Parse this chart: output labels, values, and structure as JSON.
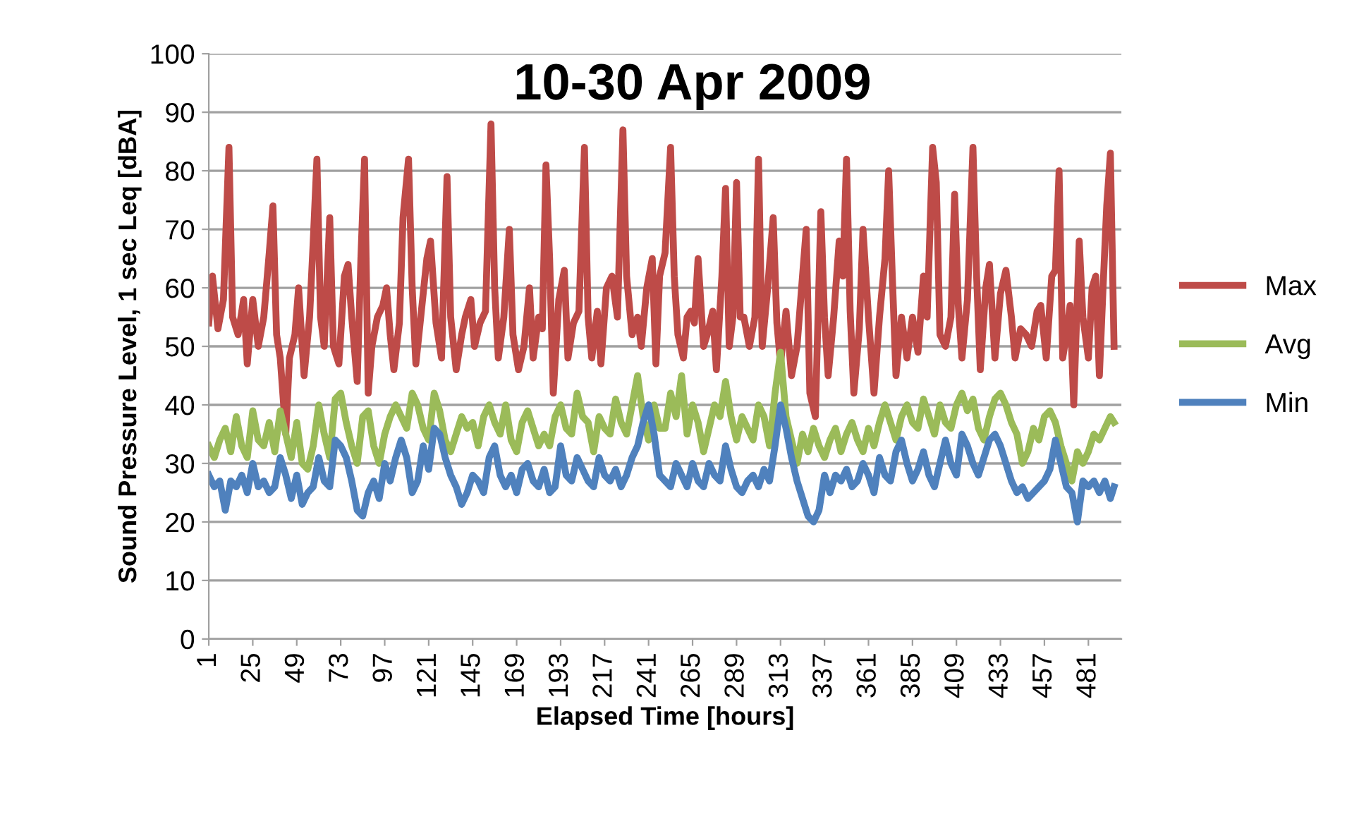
{
  "chart_data": {
    "type": "line",
    "title": "10-30 Apr 2009",
    "xlabel": "Elapsed Time [hours]",
    "ylabel": "Sound Pressure Level, 1 sec Leq [dBA]",
    "xlim": [
      1,
      499
    ],
    "xticks": [
      1,
      25,
      49,
      73,
      97,
      121,
      145,
      169,
      193,
      217,
      241,
      265,
      289,
      313,
      337,
      361,
      385,
      409,
      433,
      457,
      481
    ],
    "ylim": [
      0,
      100
    ],
    "yticks": [
      0,
      10,
      20,
      30,
      40,
      50,
      60,
      70,
      80,
      90,
      100
    ],
    "grid": "y",
    "legend": "right",
    "line_style": "solid",
    "marker": "none",
    "series": [
      {
        "name": "Max",
        "color": "#be4b48",
        "x": [
          1,
          3,
          6,
          9,
          12,
          14,
          17,
          20,
          22,
          25,
          28,
          31,
          34,
          36,
          38,
          40,
          43,
          45,
          48,
          50,
          53,
          56,
          58,
          60,
          62,
          64,
          67,
          69,
          72,
          75,
          77,
          79,
          82,
          84,
          86,
          88,
          90,
          93,
          96,
          98,
          100,
          102,
          105,
          107,
          110,
          112,
          114,
          117,
          120,
          122,
          125,
          128,
          131,
          133,
          136,
          139,
          141,
          144,
          146,
          149,
          152,
          155,
          157,
          159,
          162,
          165,
          167,
          170,
          173,
          176,
          178,
          181,
          183,
          185,
          187,
          189,
          192,
          195,
          197,
          200,
          203,
          206,
          208,
          210,
          213,
          215,
          218,
          221,
          224,
          227,
          229,
          232,
          235,
          237,
          240,
          243,
          245,
          247,
          250,
          253,
          255,
          257,
          260,
          262,
          264,
          266,
          268,
          271,
          273,
          276,
          278,
          281,
          283,
          285,
          287,
          289,
          291,
          293,
          296,
          299,
          301,
          303,
          306,
          309,
          311,
          313,
          316,
          319,
          322,
          325,
          327,
          329,
          332,
          335,
          337,
          339,
          342,
          345,
          347,
          349,
          351,
          353,
          356,
          358,
          361,
          364,
          367,
          370,
          372,
          374,
          376,
          379,
          382,
          385,
          388,
          391,
          393,
          396,
          398,
          400,
          403,
          406,
          408,
          410,
          412,
          415,
          418,
          420,
          422,
          425,
          427,
          430,
          433,
          436,
          439,
          441,
          444,
          447,
          450,
          453,
          455,
          458,
          461,
          463,
          465,
          467,
          469,
          471,
          473,
          476,
          478,
          481,
          483,
          485,
          487,
          489,
          491,
          493,
          495
        ],
        "values": [
          54,
          62,
          53,
          58,
          84,
          55,
          52,
          58,
          47,
          58,
          50,
          55,
          66,
          74,
          52,
          48,
          35,
          48,
          52,
          60,
          45,
          55,
          68,
          82,
          55,
          50,
          72,
          50,
          47,
          62,
          64,
          55,
          44,
          65,
          82,
          42,
          50,
          55,
          57,
          60,
          52,
          46,
          54,
          72,
          82,
          60,
          47,
          56,
          65,
          68,
          54,
          48,
          79,
          55,
          46,
          52,
          55,
          58,
          50,
          54,
          56,
          88,
          60,
          48,
          55,
          70,
          52,
          46,
          50,
          60,
          48,
          55,
          53,
          81,
          65,
          42,
          58,
          63,
          48,
          54,
          56,
          84,
          55,
          48,
          56,
          47,
          60,
          62,
          55,
          87,
          62,
          52,
          55,
          50,
          60,
          65,
          47,
          62,
          66,
          84,
          62,
          52,
          48,
          55,
          56,
          54,
          65,
          50,
          52,
          56,
          46,
          62,
          77,
          50,
          55,
          78,
          55,
          55,
          50,
          55,
          82,
          50,
          60,
          72,
          54,
          47,
          56,
          45,
          50,
          62,
          70,
          42,
          38,
          73,
          55,
          45,
          55,
          68,
          62,
          82,
          56,
          42,
          53,
          70,
          55,
          42,
          55,
          65,
          80,
          62,
          45,
          55,
          48,
          55,
          49,
          62,
          55,
          84,
          78,
          52,
          50,
          55,
          76,
          57,
          48,
          58,
          84,
          62,
          46,
          60,
          64,
          48,
          59,
          63,
          55,
          48,
          53,
          52,
          50,
          56,
          57,
          48,
          62,
          63,
          80,
          48,
          52,
          57,
          40,
          68,
          55,
          48,
          60,
          62,
          45,
          60,
          74,
          83,
          50
        ]
      },
      {
        "name": "Avg",
        "color": "#9bbb59",
        "x": [
          1,
          4,
          7,
          10,
          13,
          16,
          19,
          22,
          25,
          28,
          31,
          34,
          37,
          40,
          43,
          46,
          49,
          52,
          55,
          58,
          61,
          64,
          67,
          70,
          73,
          76,
          79,
          82,
          85,
          88,
          91,
          94,
          97,
          100,
          103,
          106,
          109,
          112,
          115,
          118,
          121,
          124,
          127,
          130,
          133,
          136,
          139,
          142,
          145,
          148,
          151,
          154,
          157,
          160,
          163,
          166,
          169,
          172,
          175,
          178,
          181,
          184,
          187,
          190,
          193,
          196,
          199,
          202,
          205,
          208,
          211,
          214,
          217,
          220,
          223,
          226,
          229,
          232,
          235,
          238,
          241,
          244,
          247,
          250,
          253,
          256,
          259,
          262,
          265,
          268,
          271,
          274,
          277,
          280,
          283,
          286,
          289,
          292,
          295,
          298,
          301,
          304,
          307,
          310,
          313,
          316,
          319,
          322,
          325,
          328,
          331,
          334,
          337,
          340,
          343,
          346,
          349,
          352,
          355,
          358,
          361,
          364,
          367,
          370,
          373,
          376,
          379,
          382,
          385,
          388,
          391,
          394,
          397,
          400,
          403,
          406,
          409,
          412,
          415,
          418,
          421,
          424,
          427,
          430,
          433,
          436,
          439,
          442,
          445,
          448,
          451,
          454,
          457,
          460,
          463,
          466,
          469,
          472,
          475,
          478,
          481,
          484,
          487,
          490,
          493,
          495
        ],
        "values": [
          33,
          31,
          34,
          36,
          32,
          38,
          33,
          31,
          39,
          34,
          33,
          37,
          32,
          39,
          35,
          31,
          37,
          30,
          29,
          33,
          40,
          35,
          31,
          41,
          42,
          37,
          33,
          30,
          38,
          39,
          33,
          30,
          35,
          38,
          40,
          38,
          36,
          42,
          40,
          36,
          34,
          42,
          39,
          34,
          32,
          35,
          38,
          36,
          37,
          33,
          38,
          40,
          37,
          35,
          40,
          34,
          32,
          37,
          39,
          36,
          33,
          35,
          33,
          38,
          40,
          36,
          35,
          42,
          38,
          37,
          32,
          38,
          36,
          35,
          41,
          37,
          35,
          40,
          45,
          38,
          34,
          40,
          36,
          36,
          42,
          38,
          45,
          35,
          40,
          37,
          32,
          36,
          40,
          38,
          44,
          38,
          34,
          38,
          36,
          34,
          40,
          38,
          33,
          42,
          49,
          38,
          34,
          30,
          35,
          32,
          36,
          33,
          31,
          34,
          36,
          32,
          35,
          37,
          34,
          32,
          36,
          33,
          37,
          40,
          37,
          34,
          38,
          40,
          37,
          36,
          41,
          38,
          35,
          40,
          37,
          36,
          40,
          42,
          39,
          41,
          36,
          34,
          38,
          41,
          42,
          40,
          37,
          35,
          30,
          32,
          36,
          34,
          38,
          39,
          37,
          33,
          30,
          27,
          32,
          30,
          32,
          35,
          34,
          36,
          38,
          37
        ]
      },
      {
        "name": "Min",
        "color": "#4f81bd",
        "x": [
          1,
          4,
          7,
          10,
          13,
          16,
          19,
          22,
          25,
          28,
          31,
          34,
          37,
          40,
          43,
          46,
          49,
          52,
          55,
          58,
          61,
          64,
          67,
          70,
          73,
          76,
          79,
          82,
          85,
          88,
          91,
          94,
          97,
          100,
          103,
          106,
          109,
          112,
          115,
          118,
          121,
          124,
          127,
          130,
          133,
          136,
          139,
          142,
          145,
          148,
          151,
          154,
          157,
          160,
          163,
          166,
          169,
          172,
          175,
          178,
          181,
          184,
          187,
          190,
          193,
          196,
          199,
          202,
          205,
          208,
          211,
          214,
          217,
          220,
          223,
          226,
          229,
          232,
          235,
          238,
          241,
          244,
          247,
          250,
          253,
          256,
          259,
          262,
          265,
          268,
          271,
          274,
          277,
          280,
          283,
          286,
          289,
          292,
          295,
          298,
          301,
          304,
          307,
          310,
          313,
          316,
          319,
          322,
          325,
          328,
          331,
          334,
          337,
          340,
          343,
          346,
          349,
          352,
          355,
          358,
          361,
          364,
          367,
          370,
          373,
          376,
          379,
          382,
          385,
          388,
          391,
          394,
          397,
          400,
          403,
          406,
          409,
          412,
          415,
          418,
          421,
          424,
          427,
          430,
          433,
          436,
          439,
          442,
          445,
          448,
          451,
          454,
          457,
          460,
          463,
          466,
          469,
          472,
          475,
          478,
          481,
          484,
          487,
          490,
          493,
          495
        ],
        "values": [
          28,
          26,
          27,
          22,
          27,
          26,
          28,
          25,
          30,
          26,
          27,
          25,
          26,
          31,
          28,
          24,
          28,
          23,
          25,
          26,
          31,
          27,
          26,
          34,
          33,
          31,
          27,
          22,
          21,
          25,
          27,
          24,
          30,
          27,
          31,
          34,
          31,
          25,
          27,
          33,
          29,
          36,
          35,
          31,
          28,
          26,
          23,
          25,
          28,
          27,
          25,
          31,
          33,
          28,
          26,
          28,
          25,
          29,
          30,
          27,
          26,
          29,
          25,
          26,
          33,
          28,
          27,
          31,
          29,
          27,
          26,
          31,
          28,
          27,
          29,
          26,
          28,
          31,
          33,
          37,
          40,
          35,
          28,
          27,
          26,
          30,
          28,
          26,
          30,
          27,
          26,
          30,
          28,
          27,
          33,
          29,
          26,
          25,
          27,
          28,
          26,
          29,
          27,
          33,
          40,
          36,
          31,
          27,
          24,
          21,
          20,
          22,
          28,
          25,
          28,
          27,
          29,
          26,
          27,
          30,
          28,
          25,
          31,
          28,
          27,
          32,
          34,
          30,
          27,
          29,
          32,
          28,
          26,
          30,
          34,
          30,
          28,
          35,
          33,
          30,
          28,
          31,
          34,
          35,
          33,
          30,
          27,
          25,
          26,
          24,
          25,
          26,
          27,
          29,
          34,
          30,
          26,
          25,
          20,
          27,
          26,
          27,
          25,
          27,
          24,
          26
        ]
      }
    ]
  }
}
